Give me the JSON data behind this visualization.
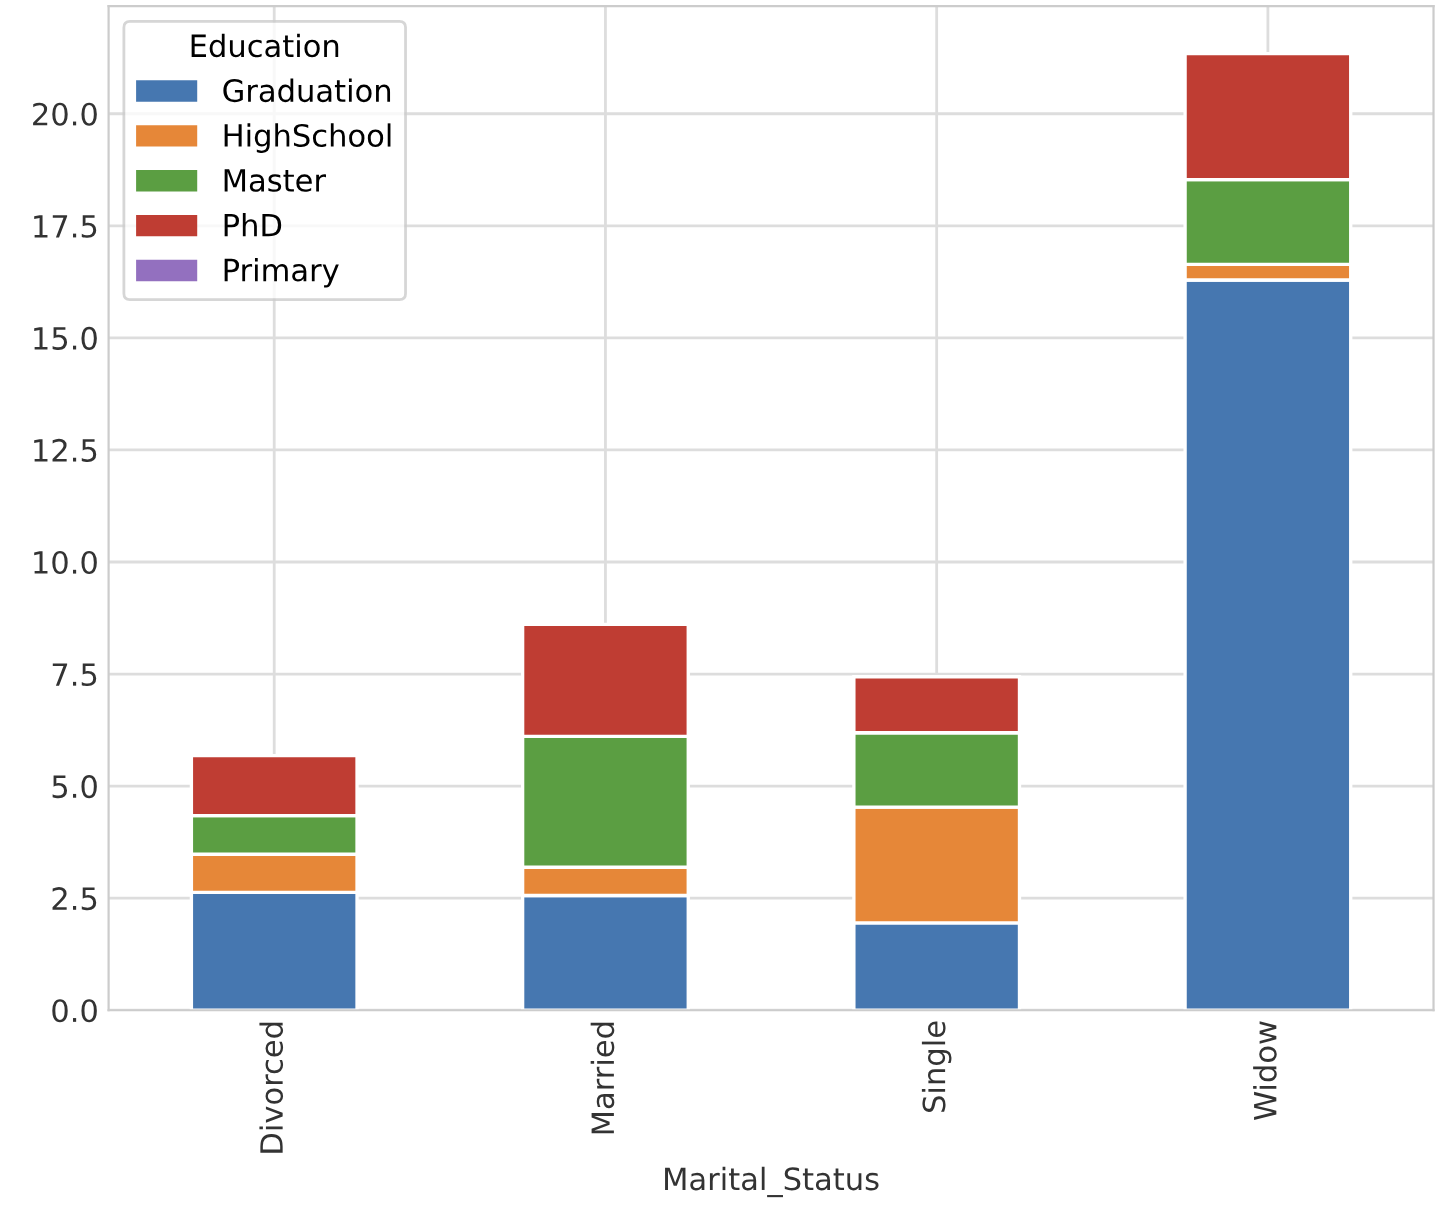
{
  "chart_data": {
    "type": "bar",
    "stacked": true,
    "xlabel": "Marital_Status",
    "legend_title": "Education",
    "legend": "top left",
    "grid": true,
    "categories": [
      "Divorced",
      "Married",
      "Single",
      "Widow"
    ],
    "series": [
      {
        "name": "Graduation",
        "color": "#4677b0",
        "values": [
          2.63,
          2.56,
          1.95,
          16.29
        ]
      },
      {
        "name": "HighSchool",
        "color": "#e68738",
        "values": [
          0.85,
          0.63,
          2.58,
          0.35
        ]
      },
      {
        "name": "Master",
        "color": "#5b9e42",
        "values": [
          0.86,
          2.92,
          1.66,
          1.89
        ]
      },
      {
        "name": "PhD",
        "color": "#bf3d33",
        "values": [
          1.34,
          2.5,
          1.25,
          2.81
        ]
      },
      {
        "name": "Primary",
        "color": "#9370bf",
        "values": [
          null,
          null,
          null,
          null
        ]
      }
    ],
    "ylim": [
      0,
      22.4
    ],
    "yticks": [
      {
        "value": 0,
        "label": "0.0"
      },
      2.5,
      {
        "value": 5,
        "label": "5.0"
      },
      7.5,
      {
        "value": 10,
        "label": "10.0"
      },
      12.5,
      {
        "value": 15,
        "label": "15.0"
      },
      17.5,
      {
        "value": 20,
        "label": "20.0"
      }
    ]
  }
}
